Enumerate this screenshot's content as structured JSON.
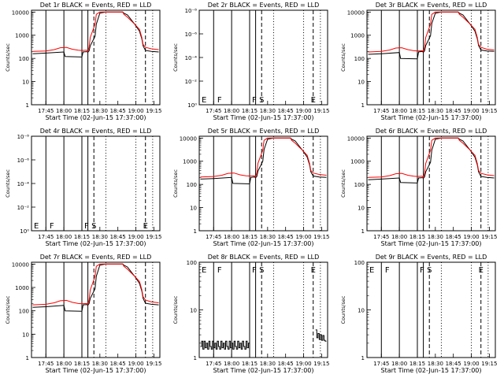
{
  "figure": {
    "xlabel": "Start Time (02-Jun-15 17:37:00)",
    "ylabel": "Counts/sec",
    "x_ticks": [
      "17:45",
      "18:00",
      "18:15",
      "18:30",
      "18:45",
      "19:00",
      "19:15"
    ],
    "colors": {
      "events": "#000000",
      "lld": "#ff0000",
      "axes": "#000000",
      "background": "#ffffff"
    }
  },
  "chart_data": [
    {
      "type": "line",
      "title": "Det 1r BLACK = Events, RED = LLD",
      "ylabel": "Counts/sec",
      "xlabel": "Start Time (02-Jun-15 17:37:00)",
      "scale": "log",
      "yticks": [
        "1",
        "10",
        "100",
        "1000",
        "10000"
      ],
      "ylim": [
        1,
        12000
      ],
      "xlim_minutes": [
        -4,
        103
      ],
      "flags": [],
      "solid_lines_min": [
        8,
        23,
        38,
        43
      ],
      "dashed_lines_min": [
        48,
        91
      ],
      "dotted_lines_min": [
        58,
        83,
        97
      ],
      "series": [
        {
          "name": "BLACK = Events",
          "color": "#000000",
          "x": [
            -3,
            8,
            23,
            24,
            38,
            39,
            42,
            43,
            44,
            45,
            49,
            50,
            53,
            58,
            63,
            68,
            72,
            73,
            76,
            82,
            86,
            88,
            89,
            91,
            96,
            102
          ],
          "y": [
            160,
            170,
            190,
            120,
            115,
            190,
            195,
            185,
            210,
            350,
            900,
            3000,
            9000,
            10000,
            10000,
            10000,
            10000,
            9000,
            7500,
            3000,
            1500,
            700,
            350,
            220,
            200,
            190
          ]
        },
        {
          "name": "RED = LLD",
          "color": "#ff0000",
          "x": [
            -3,
            8,
            15,
            20,
            25,
            30,
            35,
            38,
            42,
            43,
            44,
            45,
            49,
            50,
            53,
            58,
            63,
            68,
            72,
            73,
            76,
            82,
            86,
            88,
            89,
            91,
            96,
            102
          ],
          "y": [
            200,
            210,
            240,
            290,
            300,
            250,
            225,
            220,
            225,
            200,
            300,
            800,
            3000,
            8000,
            10000,
            10000,
            10000,
            10000,
            10000,
            8000,
            6000,
            3000,
            1800,
            800,
            400,
            300,
            260,
            240
          ]
        }
      ]
    },
    {
      "type": "line",
      "title": "Det 2r BLACK = Events, RED = LLD",
      "ylabel": "Counts/sec",
      "xlabel": "Start Time (02-Jun-15 17:37:00)",
      "scale": "exp",
      "yticks": [
        "10⁰",
        "10⁻²",
        "10⁻⁴",
        "10⁻⁶",
        "10⁻⁸"
      ],
      "xlim_minutes": [
        -4,
        103
      ],
      "flags": [
        {
          "label": "E",
          "x": -2
        },
        {
          "label": "F",
          "x": 11
        },
        {
          "label": "F",
          "x": 40
        },
        {
          "label": "S",
          "x": 46
        },
        {
          "label": "E",
          "x": 89
        }
      ],
      "solid_lines_min": [
        8,
        23,
        38,
        43
      ],
      "dashed_lines_min": [
        48,
        91
      ],
      "dotted_lines_min": [
        58,
        83,
        97
      ],
      "series": []
    },
    {
      "type": "line",
      "title": "Det 3r BLACK = Events, RED = LLD",
      "ylabel": "Counts/sec",
      "xlabel": "Start Time (02-Jun-15 17:37:00)",
      "scale": "log",
      "yticks": [
        "1",
        "10",
        "100",
        "1000",
        "10000"
      ],
      "ylim": [
        1,
        12000
      ],
      "xlim_minutes": [
        -4,
        103
      ],
      "flags": [],
      "solid_lines_min": [
        8,
        23,
        38,
        43
      ],
      "dashed_lines_min": [
        48,
        91
      ],
      "dotted_lines_min": [
        58,
        83,
        97
      ],
      "series": [
        {
          "name": "BLACK = Events",
          "color": "#000000",
          "x": [
            -3,
            8,
            23,
            24,
            38,
            39,
            42,
            43,
            44,
            45,
            49,
            50,
            53,
            58,
            63,
            68,
            72,
            73,
            76,
            82,
            86,
            88,
            89,
            91,
            96,
            102
          ],
          "y": [
            150,
            160,
            180,
            100,
            95,
            190,
            200,
            185,
            210,
            360,
            950,
            3200,
            9000,
            10000,
            10000,
            10000,
            10000,
            9000,
            7500,
            3000,
            1500,
            700,
            360,
            230,
            210,
            200
          ]
        },
        {
          "name": "RED = LLD",
          "color": "#ff0000",
          "x": [
            -3,
            8,
            15,
            20,
            25,
            30,
            35,
            38,
            42,
            43,
            44,
            45,
            49,
            50,
            53,
            58,
            63,
            68,
            72,
            73,
            76,
            82,
            86,
            88,
            89,
            91,
            96,
            102
          ],
          "y": [
            190,
            200,
            230,
            280,
            290,
            240,
            215,
            210,
            215,
            200,
            300,
            800,
            3000,
            8000,
            10000,
            10000,
            10000,
            10000,
            10000,
            8000,
            6000,
            3000,
            1800,
            800,
            400,
            300,
            250,
            230
          ]
        }
      ]
    },
    {
      "type": "line",
      "title": "Det 4r BLACK = Events, RED = LLD",
      "ylabel": "Counts/sec",
      "xlabel": "Start Time (02-Jun-15 17:37:00)",
      "scale": "exp",
      "yticks": [
        "10⁰",
        "10⁻²",
        "10⁻⁴",
        "10⁻⁶",
        "10⁻⁸"
      ],
      "xlim_minutes": [
        -4,
        103
      ],
      "flags": [
        {
          "label": "E",
          "x": -2
        },
        {
          "label": "F",
          "x": 11
        },
        {
          "label": "F",
          "x": 40
        },
        {
          "label": "S",
          "x": 46
        },
        {
          "label": "E",
          "x": 89
        }
      ],
      "solid_lines_min": [
        8,
        23,
        38,
        43
      ],
      "dashed_lines_min": [
        48,
        91
      ],
      "dotted_lines_min": [
        58,
        83,
        97
      ],
      "series": []
    },
    {
      "type": "line",
      "title": "Det 5r BLACK = Events, RED = LLD",
      "ylabel": "Counts/sec",
      "xlabel": "Start Time (02-Jun-15 17:37:00)",
      "scale": "log",
      "yticks": [
        "1",
        "10",
        "100",
        "1000",
        "10000"
      ],
      "ylim": [
        1,
        12000
      ],
      "xlim_minutes": [
        -4,
        103
      ],
      "flags": [],
      "solid_lines_min": [
        8,
        23,
        38,
        43
      ],
      "dashed_lines_min": [
        48,
        91
      ],
      "dotted_lines_min": [
        58,
        83,
        97
      ],
      "series": [
        {
          "name": "BLACK = Events",
          "color": "#000000",
          "x": [
            -3,
            8,
            23,
            24,
            38,
            39,
            42,
            43,
            44,
            45,
            49,
            50,
            53,
            58,
            63,
            68,
            72,
            73,
            76,
            82,
            86,
            88,
            89,
            91,
            96,
            102
          ],
          "y": [
            170,
            180,
            200,
            110,
            105,
            200,
            210,
            195,
            220,
            380,
            1000,
            3200,
            9000,
            10000,
            10000,
            10000,
            10000,
            9000,
            7500,
            3000,
            1500,
            700,
            350,
            230,
            210,
            200
          ]
        },
        {
          "name": "RED = LLD",
          "color": "#ff0000",
          "x": [
            -3,
            8,
            15,
            20,
            25,
            30,
            35,
            38,
            42,
            43,
            44,
            45,
            49,
            50,
            53,
            58,
            63,
            68,
            72,
            73,
            76,
            82,
            86,
            88,
            89,
            91,
            96,
            102
          ],
          "y": [
            210,
            220,
            250,
            300,
            310,
            260,
            235,
            230,
            235,
            210,
            310,
            820,
            3000,
            8000,
            10000,
            10000,
            10000,
            10000,
            10000,
            8000,
            6000,
            3000,
            1800,
            800,
            400,
            310,
            270,
            250
          ]
        }
      ]
    },
    {
      "type": "line",
      "title": "Det 6r BLACK = Events, RED = LLD",
      "ylabel": "Counts/sec",
      "xlabel": "Start Time (02-Jun-15 17:37:00)",
      "scale": "log",
      "yticks": [
        "1",
        "10",
        "100",
        "1000",
        "10000"
      ],
      "ylim": [
        1,
        12000
      ],
      "xlim_minutes": [
        -4,
        103
      ],
      "flags": [],
      "solid_lines_min": [
        8,
        23,
        38,
        43
      ],
      "dashed_lines_min": [
        48,
        91
      ],
      "dotted_lines_min": [
        58,
        83,
        97
      ],
      "series": [
        {
          "name": "BLACK = Events",
          "color": "#000000",
          "x": [
            -3,
            8,
            23,
            24,
            38,
            39,
            42,
            43,
            44,
            45,
            49,
            50,
            53,
            58,
            63,
            68,
            72,
            73,
            76,
            82,
            86,
            88,
            89,
            91,
            96,
            102
          ],
          "y": [
            160,
            170,
            190,
            120,
            115,
            190,
            195,
            185,
            210,
            350,
            900,
            3000,
            9000,
            10000,
            10000,
            10000,
            10000,
            9000,
            7500,
            3000,
            1500,
            700,
            350,
            220,
            200,
            190
          ]
        },
        {
          "name": "RED = LLD",
          "color": "#ff0000",
          "x": [
            -3,
            8,
            15,
            20,
            25,
            30,
            35,
            38,
            42,
            43,
            44,
            45,
            49,
            50,
            53,
            58,
            63,
            68,
            72,
            73,
            76,
            82,
            86,
            88,
            89,
            91,
            96,
            102
          ],
          "y": [
            200,
            210,
            240,
            290,
            300,
            250,
            225,
            220,
            225,
            200,
            300,
            800,
            3000,
            8000,
            10000,
            10000,
            10000,
            10000,
            10000,
            8000,
            6000,
            3000,
            1800,
            800,
            400,
            300,
            260,
            240
          ]
        }
      ]
    },
    {
      "type": "line",
      "title": "Det 7r BLACK = Events, RED = LLD",
      "ylabel": "Counts/sec",
      "xlabel": "Start Time (02-Jun-15 17:37:00)",
      "scale": "log",
      "yticks": [
        "1",
        "10",
        "100",
        "1000",
        "10000"
      ],
      "ylim": [
        1,
        12000
      ],
      "xlim_minutes": [
        -4,
        103
      ],
      "flags": [],
      "solid_lines_min": [
        8,
        23,
        38,
        43
      ],
      "dashed_lines_min": [
        48,
        91
      ],
      "dotted_lines_min": [
        58,
        83,
        97
      ],
      "series": [
        {
          "name": "BLACK = Events",
          "color": "#000000",
          "x": [
            -3,
            8,
            23,
            24,
            38,
            39,
            42,
            43,
            44,
            45,
            49,
            50,
            53,
            58,
            63,
            68,
            72,
            73,
            76,
            82,
            86,
            88,
            89,
            91,
            96,
            102
          ],
          "y": [
            140,
            150,
            170,
            100,
            95,
            180,
            185,
            175,
            200,
            340,
            880,
            3000,
            9000,
            10000,
            10000,
            10000,
            10000,
            9000,
            7500,
            3000,
            1500,
            700,
            340,
            210,
            190,
            180
          ]
        },
        {
          "name": "RED = LLD",
          "color": "#ff0000",
          "x": [
            -3,
            8,
            15,
            20,
            25,
            30,
            35,
            38,
            42,
            43,
            44,
            45,
            49,
            50,
            53,
            58,
            63,
            68,
            72,
            73,
            76,
            82,
            86,
            88,
            89,
            91,
            96,
            102
          ],
          "y": [
            180,
            190,
            220,
            270,
            280,
            230,
            205,
            200,
            205,
            190,
            290,
            780,
            3000,
            8000,
            10000,
            10000,
            10000,
            10000,
            10000,
            8000,
            6000,
            3000,
            1800,
            800,
            400,
            290,
            240,
            220
          ]
        }
      ]
    },
    {
      "type": "line",
      "title": "Det 8r BLACK = Events, RED = LLD",
      "ylabel": "Counts/sec",
      "xlabel": "Start Time (02-Jun-15 17:37:00)",
      "scale": "log",
      "yticks": [
        "1",
        "10",
        "100"
      ],
      "ylim": [
        1,
        100
      ],
      "xlim_minutes": [
        -4,
        103
      ],
      "flags": [
        {
          "label": "E",
          "x": -2
        },
        {
          "label": "F",
          "x": 11
        },
        {
          "label": "F",
          "x": 40
        },
        {
          "label": "S",
          "x": 46
        },
        {
          "label": "E",
          "x": 89
        }
      ],
      "solid_lines_min": [
        8,
        23,
        38,
        43
      ],
      "dashed_lines_min": [
        48,
        91
      ],
      "dotted_lines_min": [
        58,
        83,
        97
      ],
      "series": [
        {
          "name": "BLACK = Events",
          "color": "#000000",
          "x": [
            -3,
            -2,
            -1,
            0,
            1,
            2,
            3,
            4,
            5,
            6,
            7,
            8,
            9,
            10,
            11,
            12,
            13,
            14,
            15,
            16,
            17,
            18,
            19,
            20,
            21,
            22,
            23,
            24,
            25,
            26,
            27,
            28,
            29,
            30,
            31,
            32,
            33,
            34,
            35,
            36,
            37,
            38
          ],
          "y": [
            1.7,
            2.2,
            1.5,
            2.2,
            1.6,
            2.0,
            1.5,
            2.2,
            1.7,
            1.5,
            2.2,
            1.6,
            2.0,
            1.5,
            2.2,
            1.7,
            1.5,
            2.2,
            1.6,
            2.0,
            1.5,
            2.2,
            1.7,
            1.5,
            2.2,
            1.6,
            2.0,
            1.5,
            2.2,
            1.7,
            1.5,
            2.2,
            1.6,
            2.0,
            1.5,
            2.2,
            1.7,
            1.5,
            2.2,
            1.6,
            2.0,
            1.5
          ]
        },
        {
          "name": "BLACK = Events (late)",
          "color": "#000000",
          "x": [
            93,
            94,
            95,
            96,
            97,
            98,
            99,
            100,
            101,
            102
          ],
          "y": [
            3.8,
            2.6,
            3.2,
            2.4,
            3.0,
            2.3,
            2.9,
            2.3,
            2.2,
            2.2
          ]
        }
      ]
    },
    {
      "type": "line",
      "title": "Det 9r BLACK = Events, RED = LLD",
      "ylabel": "Counts/sec",
      "xlabel": "Start Time (02-Jun-15 17:37:00)",
      "scale": "log",
      "yticks": [
        "1",
        "10",
        "100"
      ],
      "ylim": [
        1,
        100
      ],
      "xlim_minutes": [
        -4,
        103
      ],
      "flags": [
        {
          "label": "E",
          "x": -2
        },
        {
          "label": "F",
          "x": 11
        },
        {
          "label": "F",
          "x": 40
        },
        {
          "label": "S",
          "x": 46
        },
        {
          "label": "E",
          "x": 89
        }
      ],
      "solid_lines_min": [
        8,
        23,
        38,
        43
      ],
      "dashed_lines_min": [
        48,
        91
      ],
      "dotted_lines_min": [
        58,
        83,
        97
      ],
      "series": []
    }
  ]
}
